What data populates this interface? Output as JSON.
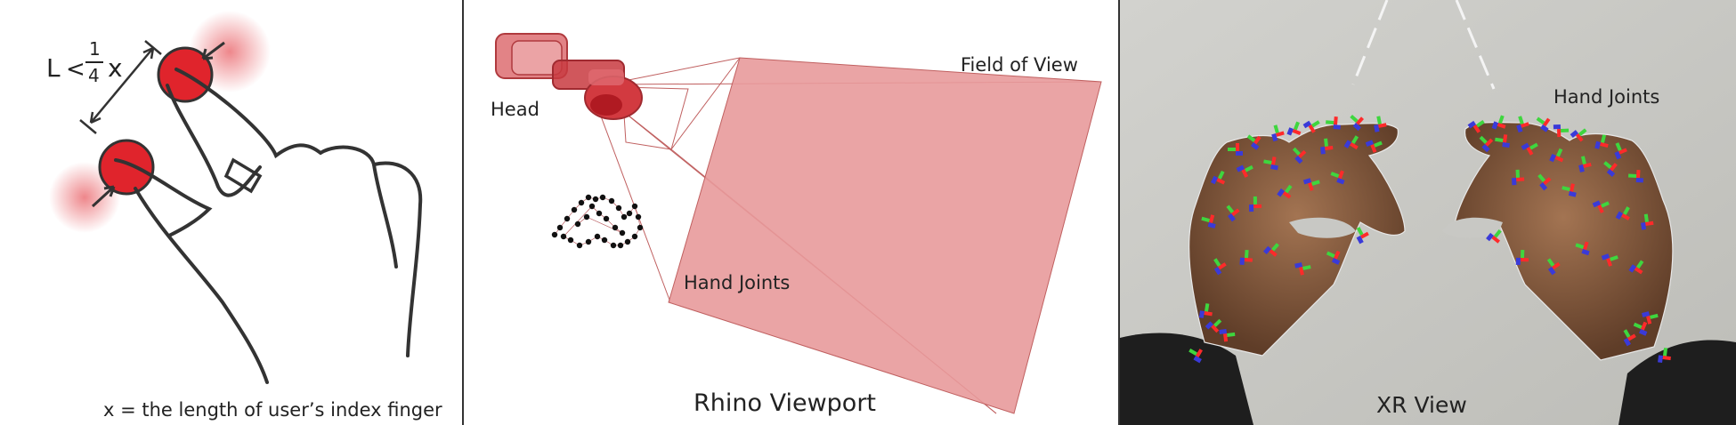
{
  "gesture_panel": {
    "formula_L": "L",
    "formula_lt": "<",
    "formula_num": "1",
    "formula_den": "4",
    "formula_x": "x",
    "caption": "x = the length of user’s index finger"
  },
  "rhino_panel": {
    "head_label": "Head",
    "fov_label": "Field of View",
    "joints_label": "Hand Joints",
    "caption": "Rhino Viewport"
  },
  "xr_panel": {
    "joints_label": "Hand Joints",
    "caption": "XR View"
  },
  "colors": {
    "pinch_red": "#e0242c",
    "fov_pink": "#e89a9b",
    "joint_red": "#ff2a2a",
    "joint_green": "#3ed63e",
    "joint_blue": "#3a3ad8",
    "skin": "#7a5238"
  }
}
